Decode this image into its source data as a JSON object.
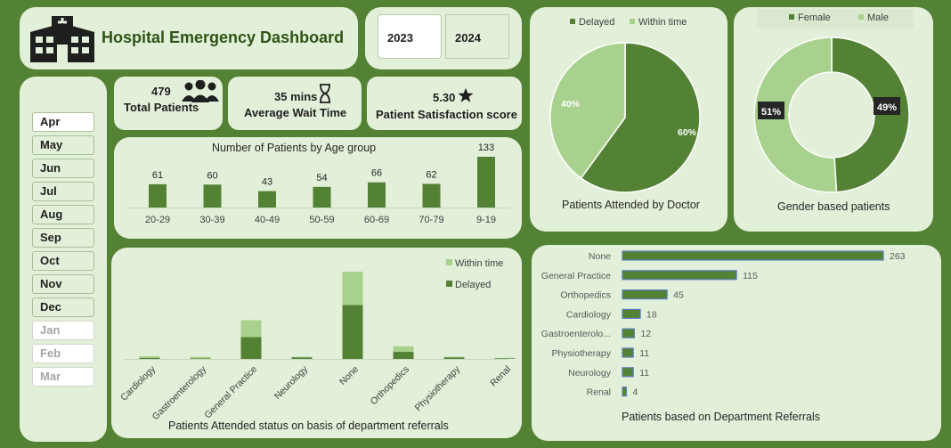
{
  "header": {
    "title": "Hospital Emergency Dashboard"
  },
  "years": [
    "2023",
    "2024"
  ],
  "months": [
    "Apr",
    "May",
    "Jun",
    "Jul",
    "Aug",
    "Sep",
    "Oct",
    "Nov",
    "Dec",
    "Jan",
    "Feb",
    "Mar"
  ],
  "kpis": {
    "patients_value": "479",
    "patients_label": "Total Patients",
    "wait_value": "35 mins",
    "wait_label": "Average Wait Time",
    "satisfaction_value": "5.30",
    "satisfaction_label": "Patient Satisfaction score"
  },
  "colors": {
    "dark": "#548235",
    "light": "#a9d18e",
    "panel": "#e2efd9",
    "bg": "#548235"
  },
  "chart_data": [
    {
      "id": "age",
      "type": "bar",
      "title": "Number of Patients by Age group",
      "categories": [
        "20-29",
        "30-39",
        "40-49",
        "50-59",
        "60-69",
        "70-79",
        "9-19"
      ],
      "values": [
        61,
        60,
        43,
        54,
        66,
        62,
        133
      ]
    },
    {
      "id": "doctor",
      "type": "pie",
      "title": "Patients Attended by Doctor",
      "labels": [
        "Delayed",
        "Within time"
      ],
      "values": [
        60,
        40
      ],
      "value_labels": [
        "60%",
        "40%"
      ],
      "legend": "top"
    },
    {
      "id": "gender",
      "type": "pie",
      "title": "Gender based patients",
      "labels": [
        "Female",
        "Male"
      ],
      "values": [
        49,
        51
      ],
      "value_labels": [
        "49%",
        "51%"
      ],
      "legend": "top"
    },
    {
      "id": "status",
      "type": "bar",
      "stacked": true,
      "title": "Patients Attended status on basis of department referrals",
      "categories": [
        "Cardiology",
        "Gastroenterology",
        "General Practice",
        "Neurology",
        "None",
        "Orthopedics",
        "Physiotherapy",
        "Renal"
      ],
      "series": [
        {
          "name": "Delayed",
          "values": [
            2,
            1,
            40,
            3,
            99,
            13,
            3,
            1
          ]
        },
        {
          "name": "Within time",
          "values": [
            3,
            3,
            31,
            1,
            61,
            10,
            1,
            1
          ]
        }
      ],
      "legend": "top-right"
    },
    {
      "id": "referrals",
      "type": "bar",
      "orientation": "horizontal",
      "title": "Patients based on Department Referrals",
      "categories": [
        "None",
        "General Practice",
        "Orthopedics",
        "Cardiology",
        "Gastroenterolo...",
        "Physiotherapy",
        "Neurology",
        "Renal"
      ],
      "values": [
        263,
        115,
        45,
        18,
        12,
        11,
        11,
        4
      ]
    }
  ]
}
